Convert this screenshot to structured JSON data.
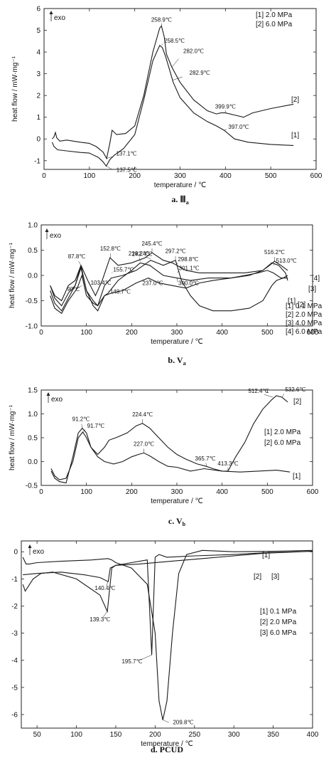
{
  "chart_data": [
    {
      "type": "line",
      "panel": "a. Ⅲ a",
      "caption": "a.",
      "caption_sym": "Ⅲ",
      "caption_sub": "a",
      "xlabel": "temperature / ℃",
      "ylabel": "heat flow / mW·mg⁻¹",
      "xlim": [
        0,
        600
      ],
      "ylim": [
        -1.4,
        6
      ],
      "xticks": [
        0,
        100,
        200,
        300,
        400,
        500,
        600
      ],
      "yticks": [
        -1,
        0,
        1,
        2,
        3,
        4,
        5,
        6
      ],
      "exo_label": "exo",
      "legend": [
        "[1] 2.0 MPa",
        "[2] 6.0 MPa"
      ],
      "series": [
        {
          "label": "[1]",
          "x": [
            18,
            22,
            30,
            50,
            80,
            100,
            120,
            130,
            137,
            145,
            155,
            175,
            200,
            220,
            240,
            255,
            261,
            268,
            285,
            300,
            330,
            360,
            380,
            397,
            420,
            450,
            500,
            550
          ],
          "y": [
            -0.15,
            -0.35,
            -0.5,
            -0.55,
            -0.62,
            -0.65,
            -0.85,
            -1.05,
            -1.25,
            -0.95,
            -0.75,
            -0.45,
            0.2,
            1.8,
            3.6,
            4.3,
            4.2,
            3.8,
            2.6,
            1.9,
            1.2,
            0.8,
            0.6,
            0.4,
            0.0,
            -0.15,
            -0.25,
            -0.3
          ]
        },
        {
          "label": "[2]",
          "x": [
            18,
            22,
            25,
            28,
            35,
            50,
            80,
            100,
            115,
            130,
            138,
            145,
            150,
            160,
            180,
            200,
            220,
            240,
            255,
            259,
            265,
            270,
            282,
            300,
            330,
            360,
            380,
            390,
            400,
            420,
            440,
            460,
            500,
            550
          ],
          "y": [
            0.0,
            0.1,
            0.3,
            0.05,
            -0.1,
            -0.05,
            -0.15,
            -0.2,
            -0.35,
            -0.6,
            -0.9,
            -0.2,
            0.4,
            0.2,
            0.25,
            0.6,
            2.0,
            4.0,
            5.1,
            5.2,
            4.7,
            3.9,
            3.3,
            2.6,
            1.8,
            1.3,
            1.15,
            1.2,
            1.2,
            1.1,
            1.0,
            1.2,
            1.4,
            1.6
          ]
        }
      ],
      "annotations": [
        {
          "text": "258.9℃",
          "x": 259,
          "y": 5.2
        },
        {
          "text": "258.5℃",
          "x": 258.5,
          "y": 4.3
        },
        {
          "text": "282.0℃",
          "x": 282,
          "y": 3.3
        },
        {
          "text": "282.9℃",
          "x": 283,
          "y": 2.7
        },
        {
          "text": "399.9℃",
          "x": 400,
          "y": 1.2
        },
        {
          "text": "397.0℃",
          "x": 397,
          "y": 0.4
        },
        {
          "text": "137.1℃",
          "x": 137,
          "y": -0.9
        },
        {
          "text": "137.5℃",
          "x": 137.5,
          "y": -1.25
        }
      ]
    },
    {
      "type": "line",
      "panel": "b. V a",
      "caption": "b.",
      "caption_sym": "V",
      "caption_sub": "a",
      "xlabel": "temperature / ℃",
      "ylabel": "heat flow / mW·mg⁻¹",
      "xlim": [
        0,
        600
      ],
      "ylim": [
        -1.0,
        1.0
      ],
      "xticks": [
        0,
        100,
        200,
        300,
        400,
        500,
        600
      ],
      "yticks": [
        -1.0,
        -0.5,
        0.0,
        0.5,
        1.0
      ],
      "exo_label": "exo",
      "legend": [
        "[1] 0.1 MPa",
        "[2] 2.0 MPa",
        "[3] 4.0 MPa",
        "[4] 6.0 MPa"
      ],
      "series": [
        {
          "label": "[1]",
          "x": [
            20,
            30,
            45,
            60,
            75,
            88,
            100,
            115,
            125,
            140,
            155,
            180,
            210,
            237,
            260,
            290,
            320,
            350,
            380,
            420,
            450,
            480,
            500,
            513,
            530,
            545
          ],
          "y": [
            -0.3,
            -0.55,
            -0.7,
            -0.45,
            -0.2,
            0.15,
            -0.3,
            -0.6,
            -0.7,
            -0.4,
            -0.35,
            -0.3,
            -0.15,
            -0.05,
            -0.15,
            -0.2,
            -0.25,
            -0.15,
            -0.1,
            -0.05,
            0.0,
            0.05,
            0.1,
            0.05,
            -0.05,
            -0.05
          ]
        },
        {
          "label": "[2]",
          "x": [
            20,
            30,
            45,
            60,
            75,
            88,
            100,
            115,
            125,
            140,
            148,
            170,
            200,
            219,
            240,
            270,
            300,
            330,
            370,
            420,
            460,
            490,
            505,
            516,
            530,
            545
          ],
          "y": [
            -0.2,
            -0.45,
            -0.6,
            -0.35,
            -0.2,
            0.2,
            -0.3,
            -0.5,
            -0.6,
            -0.4,
            -0.35,
            -0.1,
            0.1,
            0.25,
            0.2,
            0.0,
            -0.05,
            -0.1,
            -0.05,
            -0.05,
            0.0,
            0.1,
            0.2,
            0.28,
            0.2,
            0.1
          ]
        },
        {
          "label": "[3]",
          "x": [
            20,
            30,
            45,
            60,
            75,
            88,
            103,
            120,
            135,
            152,
            170,
            200,
            230,
            245,
            270,
            290,
            300,
            320,
            350,
            400,
            450,
            490,
            510,
            525,
            540,
            545
          ],
          "y": [
            -0.2,
            -0.4,
            -0.5,
            -0.2,
            -0.1,
            0.2,
            -0.1,
            -0.4,
            -0.1,
            0.35,
            0.2,
            0.25,
            0.35,
            0.45,
            0.3,
            0.25,
            0.2,
            0.1,
            0.05,
            0.05,
            0.05,
            0.1,
            0.25,
            0.2,
            0.05,
            -0.1
          ]
        },
        {
          "label": "[4]",
          "x": [
            20,
            30,
            45,
            60,
            80,
            90,
            100,
            115,
            125,
            140,
            155,
            180,
            210,
            242,
            270,
            297,
            310,
            330,
            350,
            380,
            420,
            460,
            490,
            510,
            520,
            535,
            545
          ],
          "y": [
            -0.4,
            -0.65,
            -0.75,
            -0.5,
            -0.25,
            0.0,
            -0.4,
            -0.55,
            -0.6,
            -0.2,
            -0.05,
            0.0,
            0.1,
            0.3,
            0.2,
            0.3,
            -0.1,
            -0.4,
            -0.6,
            -0.7,
            -0.7,
            -0.65,
            -0.5,
            -0.2,
            -0.1,
            -0.05,
            0.0
          ]
        }
      ],
      "annotations": [
        {
          "text": "87.8℃",
          "x": 88,
          "y": 0.2
        },
        {
          "text": "90℃",
          "x": 90,
          "y": -0.2
        },
        {
          "text": "103.4℃",
          "x": 103,
          "y": -0.1
        },
        {
          "text": "152.8℃",
          "x": 153,
          "y": 0.35
        },
        {
          "text": "155.7℃",
          "x": 156,
          "y": 0.05
        },
        {
          "text": "148.7℃",
          "x": 149,
          "y": -0.3
        },
        {
          "text": "219.2℃",
          "x": 219,
          "y": 0.28
        },
        {
          "text": "245.4℃",
          "x": 245,
          "y": 0.45
        },
        {
          "text": "242.4℃",
          "x": 242,
          "y": 0.33
        },
        {
          "text": "237.0℃",
          "x": 237,
          "y": -0.05
        },
        {
          "text": "297.2℃",
          "x": 297,
          "y": 0.3
        },
        {
          "text": "298.8℃",
          "x": 299,
          "y": 0.2
        },
        {
          "text": "301.1℃",
          "x": 301,
          "y": 0.05
        },
        {
          "text": "300.0℃",
          "x": 300,
          "y": -0.05
        },
        {
          "text": "516.2℃",
          "x": 516,
          "y": 0.28
        },
        {
          "text": "513.0℃",
          "x": 513,
          "y": 0.2
        }
      ]
    },
    {
      "type": "line",
      "panel": "c. V b",
      "caption": "c.",
      "caption_sym": "V",
      "caption_sub": "b",
      "xlabel": "temperature / ℃",
      "ylabel": "heat flow / mW·mg⁻¹",
      "xlim": [
        0,
        600
      ],
      "ylim": [
        -0.5,
        1.5
      ],
      "xticks": [
        0,
        100,
        200,
        300,
        400,
        500,
        600
      ],
      "yticks": [
        -0.5,
        0.0,
        0.5,
        1.0,
        1.5
      ],
      "exo_label": "exo",
      "legend": [
        "[1] 2.0 MPa",
        "[2] 6.0 MPa"
      ],
      "series": [
        {
          "label": "[1]",
          "x": [
            22,
            30,
            40,
            55,
            70,
            82,
            92,
            100,
            110,
            125,
            140,
            160,
            180,
            200,
            215,
            227,
            240,
            260,
            280,
            300,
            330,
            360,
            400,
            440,
            480,
            520,
            550
          ],
          "y": [
            -0.15,
            -0.3,
            -0.38,
            -0.35,
            0.0,
            0.5,
            0.62,
            0.5,
            0.3,
            0.1,
            0.0,
            -0.05,
            0.0,
            0.1,
            0.15,
            0.18,
            0.12,
            0.0,
            -0.1,
            -0.12,
            -0.2,
            -0.15,
            -0.2,
            -0.22,
            -0.2,
            -0.18,
            -0.22
          ]
        },
        {
          "label": "[2]",
          "x": [
            22,
            30,
            40,
            55,
            70,
            82,
            91,
            100,
            110,
            125,
            140,
            150,
            165,
            190,
            210,
            224,
            240,
            260,
            280,
            300,
            320,
            345,
            365,
            380,
            400,
            413,
            430,
            450,
            470,
            490,
            510,
            520,
            532,
            545
          ],
          "y": [
            -0.2,
            -0.35,
            -0.42,
            -0.45,
            0.1,
            0.6,
            0.7,
            0.6,
            0.3,
            0.15,
            0.3,
            0.45,
            0.5,
            0.6,
            0.75,
            0.8,
            0.7,
            0.5,
            0.3,
            0.15,
            0.05,
            -0.05,
            -0.1,
            -0.15,
            -0.2,
            -0.2,
            0.1,
            0.4,
            0.8,
            1.1,
            1.3,
            1.38,
            1.35,
            1.25
          ]
        }
      ],
      "annotations": [
        {
          "text": "91.2℃",
          "x": 91,
          "y": 0.7
        },
        {
          "text": "91.7℃",
          "x": 92,
          "y": 0.62
        },
        {
          "text": "224.4℃",
          "x": 224,
          "y": 0.8
        },
        {
          "text": "227.0℃",
          "x": 227,
          "y": 0.18
        },
        {
          "text": "365.7℃",
          "x": 366,
          "y": -0.1
        },
        {
          "text": "413.3℃",
          "x": 413,
          "y": -0.2
        },
        {
          "text": "512.4℃",
          "x": 512,
          "y": 1.35
        },
        {
          "text": "532.6℃",
          "x": 533,
          "y": 1.35
        }
      ]
    },
    {
      "type": "line",
      "panel": "d. PCUD",
      "caption": "d.",
      "caption_sym": "PCUD",
      "caption_sub": "",
      "xlabel": "temperature / ℃",
      "ylabel": "heat flow / mW·mg⁻¹",
      "xlim": [
        30,
        400
      ],
      "ylim": [
        -6.5,
        0.4
      ],
      "xticks": [
        50,
        100,
        150,
        200,
        250,
        300,
        350,
        400
      ],
      "yticks": [
        -6,
        -5,
        -4,
        -3,
        -2,
        -1,
        0
      ],
      "exo_label": "exo",
      "legend": [
        "[1] 0.1 MPa",
        "[2] 2.0 MPa",
        "[3] 6.0 MPa"
      ],
      "series": [
        {
          "label": "[1]",
          "x": [
            32,
            36,
            40,
            50,
            80,
            120,
            140,
            145,
            150,
            170,
            190,
            200,
            205,
            209.8,
            215,
            222,
            230,
            240,
            260,
            300,
            350,
            400
          ],
          "y": [
            -0.2,
            -0.45,
            -0.45,
            -0.4,
            -0.35,
            -0.3,
            -0.25,
            -0.3,
            -0.4,
            -0.6,
            -1.2,
            -3.0,
            -5.5,
            -6.2,
            -5.5,
            -3.0,
            -0.8,
            -0.1,
            0.05,
            0.0,
            0.02,
            0.05
          ]
        },
        {
          "label": "[2]",
          "x": [
            32,
            35,
            45,
            55,
            70,
            100,
            130,
            139.3,
            145,
            150,
            170,
            190,
            195.7,
            200,
            205,
            215,
            250,
            300,
            350,
            400
          ],
          "y": [
            -1.2,
            -1.45,
            -1.0,
            -0.8,
            -0.75,
            -1.0,
            -1.6,
            -2.2,
            -0.6,
            -0.5,
            -0.4,
            -0.3,
            -3.8,
            -0.2,
            -0.1,
            -0.2,
            -0.15,
            -0.1,
            -0.02,
            0.02
          ]
        },
        {
          "label": "[3]",
          "x": [
            32,
            50,
            80,
            110,
            130,
            140.4,
            143,
            150,
            180,
            220,
            260,
            300,
            340,
            400
          ],
          "y": [
            -0.85,
            -0.8,
            -0.75,
            -0.85,
            -0.95,
            -1.1,
            -0.6,
            -0.5,
            -0.45,
            -0.35,
            -0.25,
            -0.15,
            -0.05,
            0.02
          ]
        }
      ],
      "annotations": [
        {
          "text": "140.4℃",
          "x": 140,
          "y": -1.1
        },
        {
          "text": "139.3℃",
          "x": 139,
          "y": -2.2
        },
        {
          "text": "195.7℃",
          "x": 196,
          "y": -3.8
        },
        {
          "text": "209.8℃",
          "x": 210,
          "y": -6.2
        }
      ]
    }
  ]
}
